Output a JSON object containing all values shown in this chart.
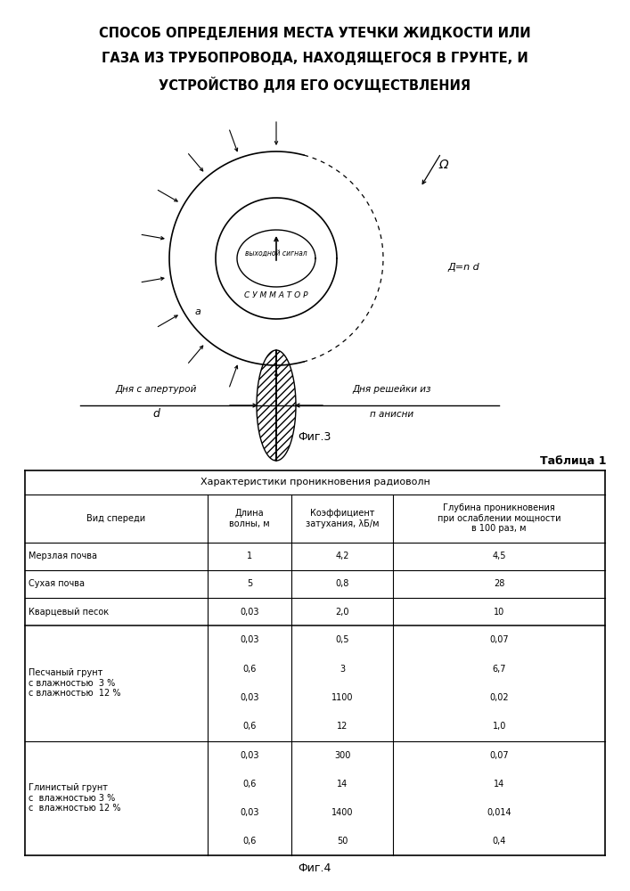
{
  "title_lines": [
    "СПОСОБ ОПРЕДЕЛЕНИЯ МЕСТА УТЕЧКИ ЖИДКОСТИ ИЛИ",
    "ГАЗА ИЗ ТРУБОПРОВОДА, НАХОДЯЩЕГОСЯ В ГРУНТЕ, И",
    "УСТРОЙСТВО ДЛЯ ЕГО ОСУЩЕСТВЛЕНИЯ"
  ],
  "fig3_label": "Фиг.3",
  "fig4_label": "Фиг.4",
  "table_title": "Таблица 1",
  "table_header_row0": "Характеристики проникновения радиоволн",
  "col_headers": [
    "Вид спереди",
    "Длина\nволны, м",
    "Коэффициент\nзатухания, λБ/м",
    "Глубина проникновения\nпри ослаблении мощности\nв 100 раз, м"
  ],
  "bg_color": "#ffffff",
  "text_color": "#000000"
}
